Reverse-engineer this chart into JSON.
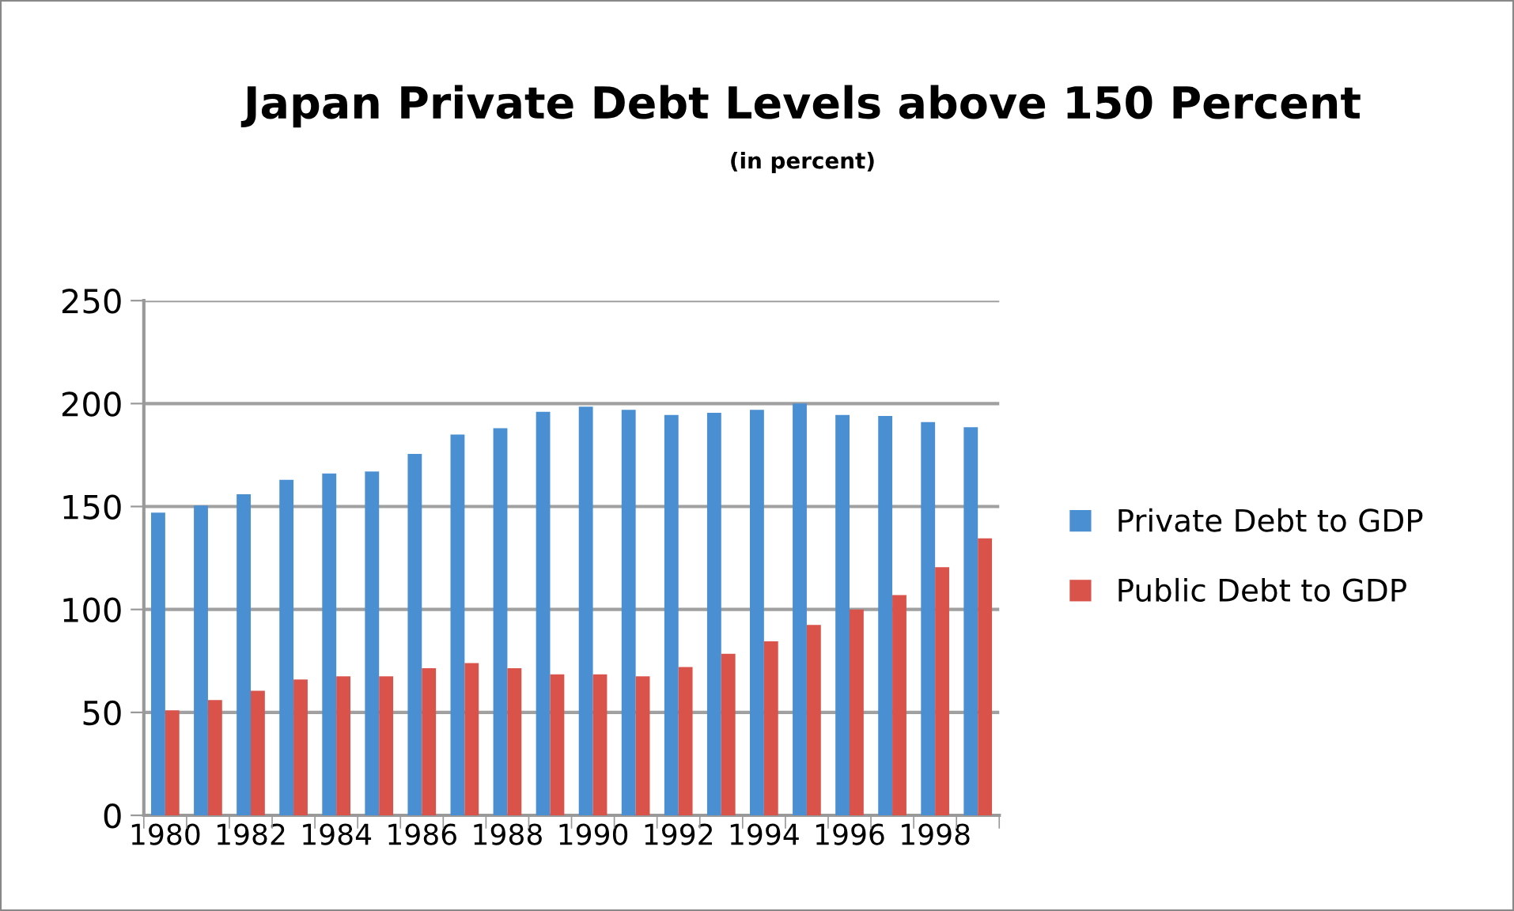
{
  "chart_data": {
    "type": "bar",
    "title": "Japan Private Debt Levels above 150 Percent",
    "subtitle": "(in percent)",
    "categories": [
      "1980",
      null,
      "1982",
      null,
      "1984",
      null,
      "1986",
      null,
      "1988",
      null,
      "1990",
      null,
      "1992",
      null,
      "1994",
      null,
      "1996",
      null,
      "1998",
      null
    ],
    "series": [
      {
        "name": "Private Debt to GDP",
        "color": "#4a8fd2",
        "values": [
          147,
          150.5,
          156,
          163,
          166,
          167,
          175.5,
          185,
          188,
          196,
          198.5,
          197,
          194.5,
          195.5,
          197,
          200,
          194.5,
          194,
          191,
          188.5
        ]
      },
      {
        "name": "Public Debt to GDP",
        "color": "#d9534a",
        "values": [
          51,
          56,
          60.5,
          66,
          67.5,
          67.5,
          71.5,
          74,
          71.5,
          68.5,
          68.5,
          67.5,
          72,
          78.5,
          84.5,
          92.5,
          100,
          107,
          120.5,
          134.5
        ]
      }
    ],
    "ylim": [
      0,
      250
    ],
    "yticks": [
      0,
      50,
      100,
      150,
      200,
      250
    ],
    "grid": "y",
    "legend": "right"
  }
}
